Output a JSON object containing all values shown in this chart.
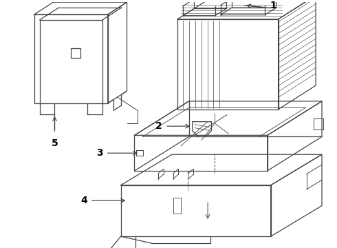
{
  "bg_color": "#ffffff",
  "line_color": "#444444",
  "lw": 0.9,
  "fig_w": 4.9,
  "fig_h": 3.6,
  "dpi": 100
}
